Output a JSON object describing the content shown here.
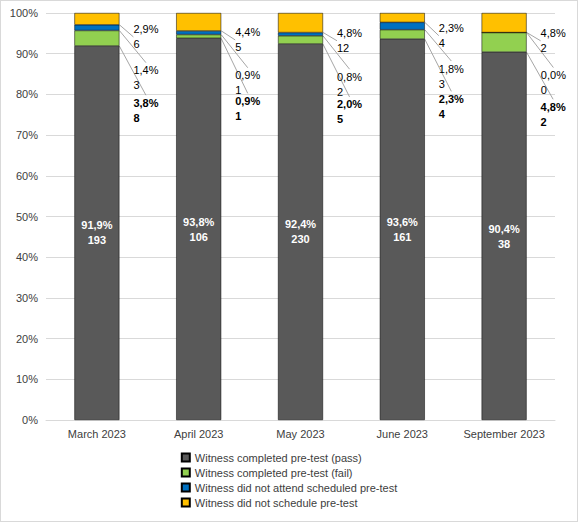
{
  "chart_data": {
    "type": "bar",
    "stacked": true,
    "data_labels": true,
    "grid": true,
    "legend": "bottom",
    "categories": [
      "March 2023",
      "April 2023",
      "May 2023",
      "June 2023",
      "September 2023"
    ],
    "ylim": [
      0,
      100
    ],
    "yticks": [
      {
        "value": 0,
        "label": "0%"
      },
      {
        "value": 10,
        "label": "10%"
      },
      {
        "value": 20,
        "label": "20%"
      },
      {
        "value": 30,
        "label": "30%"
      },
      {
        "value": 40,
        "label": "40%"
      },
      {
        "value": 50,
        "label": "50%"
      },
      {
        "value": 60,
        "label": "60%"
      },
      {
        "value": 70,
        "label": "70%"
      },
      {
        "value": 80,
        "label": "80%"
      },
      {
        "value": 90,
        "label": "90%"
      },
      {
        "value": 100,
        "label": "100%"
      }
    ],
    "series": [
      {
        "name": "Witness completed pre-test (pass)",
        "color": "#595959",
        "values": [
          91.9,
          93.8,
          92.4,
          93.6,
          90.4
        ],
        "value_labels": [
          "91,9%",
          "93,8%",
          "92,4%",
          "93,6%",
          "90,4%"
        ],
        "counts": [
          193,
          106,
          230,
          161,
          38
        ]
      },
      {
        "name": "Witness completed pre-test (fail)",
        "color": "#92d050",
        "values": [
          3.8,
          0.9,
          2.0,
          2.3,
          4.8
        ],
        "value_labels": [
          "3,8%",
          "0,9%",
          "2,0%",
          "2,3%",
          "4,8%"
        ],
        "counts": [
          8,
          1,
          5,
          4,
          2
        ]
      },
      {
        "name": "Witness did not attend scheduled pre-test",
        "color": "#0070c0",
        "values": [
          1.4,
          0.9,
          0.8,
          1.8,
          0.0
        ],
        "value_labels": [
          "1,4%",
          "0,9%",
          "0,8%",
          "1,8%",
          "0,0%"
        ],
        "counts": [
          3,
          1,
          2,
          3,
          0
        ]
      },
      {
        "name": "Witness did not schedule pre-test",
        "color": "#ffc000",
        "values": [
          2.9,
          4.4,
          4.8,
          2.3,
          4.8
        ],
        "value_labels": [
          "2,9%",
          "4,4%",
          "4,8%",
          "2,3%",
          "4,8%"
        ],
        "counts": [
          6,
          5,
          12,
          4,
          2
        ]
      }
    ]
  }
}
